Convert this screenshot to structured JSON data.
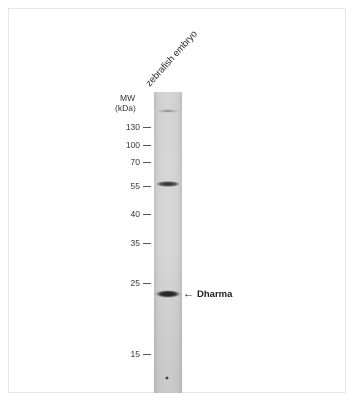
{
  "figure": {
    "lane_label": "zebrafish embryo",
    "mw_title": "MW",
    "mw_unit": "(kDa)",
    "markers": [
      {
        "label": "130",
        "kda": 130
      },
      {
        "label": "100",
        "kda": 100
      },
      {
        "label": "70",
        "kda": 70
      },
      {
        "label": "55",
        "kda": 55
      },
      {
        "label": "40",
        "kda": 40
      },
      {
        "label": "35",
        "kda": 35
      },
      {
        "label": "25",
        "kda": 25
      },
      {
        "label": "15",
        "kda": 15
      }
    ],
    "band_label": "Dharma",
    "arrow": "←"
  }
}
